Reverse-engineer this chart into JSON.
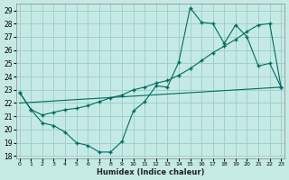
{
  "xlabel": "Humidex (Indice chaleur)",
  "bg_color": "#c5eae5",
  "grid_color": "#a0d0cc",
  "line_color": "#006b60",
  "xlim": [
    -0.3,
    23.3
  ],
  "ylim": [
    17.8,
    29.5
  ],
  "yticks": [
    18,
    19,
    20,
    21,
    22,
    23,
    24,
    25,
    26,
    27,
    28,
    29
  ],
  "xticks": [
    0,
    1,
    2,
    3,
    4,
    5,
    6,
    7,
    8,
    9,
    10,
    11,
    12,
    13,
    14,
    15,
    16,
    17,
    18,
    19,
    20,
    21,
    22,
    23
  ],
  "line1_x": [
    0,
    1,
    2,
    3,
    4,
    5,
    6,
    7,
    8,
    9,
    10,
    11,
    12,
    13,
    14,
    15,
    16,
    17,
    18,
    19,
    20,
    21,
    22,
    23
  ],
  "line1_y": [
    22.8,
    21.5,
    20.5,
    20.3,
    19.8,
    19.0,
    18.8,
    18.3,
    18.3,
    19.1,
    21.4,
    22.1,
    23.3,
    23.2,
    25.1,
    29.2,
    28.1,
    28.0,
    26.5,
    27.9,
    27.0,
    24.8,
    25.0,
    23.2
  ],
  "line2_x": [
    0,
    23
  ],
  "line2_y": [
    22.0,
    23.2
  ],
  "line3_x": [
    0,
    1,
    2,
    3,
    4,
    5,
    6,
    7,
    8,
    9,
    10,
    11,
    12,
    13,
    14,
    15,
    16,
    17,
    18,
    19,
    20,
    21,
    22,
    23
  ],
  "line3_y": [
    22.8,
    21.5,
    21.1,
    21.3,
    21.5,
    21.6,
    21.8,
    22.1,
    22.4,
    22.6,
    23.0,
    23.2,
    23.5,
    23.7,
    24.1,
    24.6,
    25.2,
    25.8,
    26.3,
    26.8,
    27.4,
    27.9,
    28.0,
    23.2
  ]
}
